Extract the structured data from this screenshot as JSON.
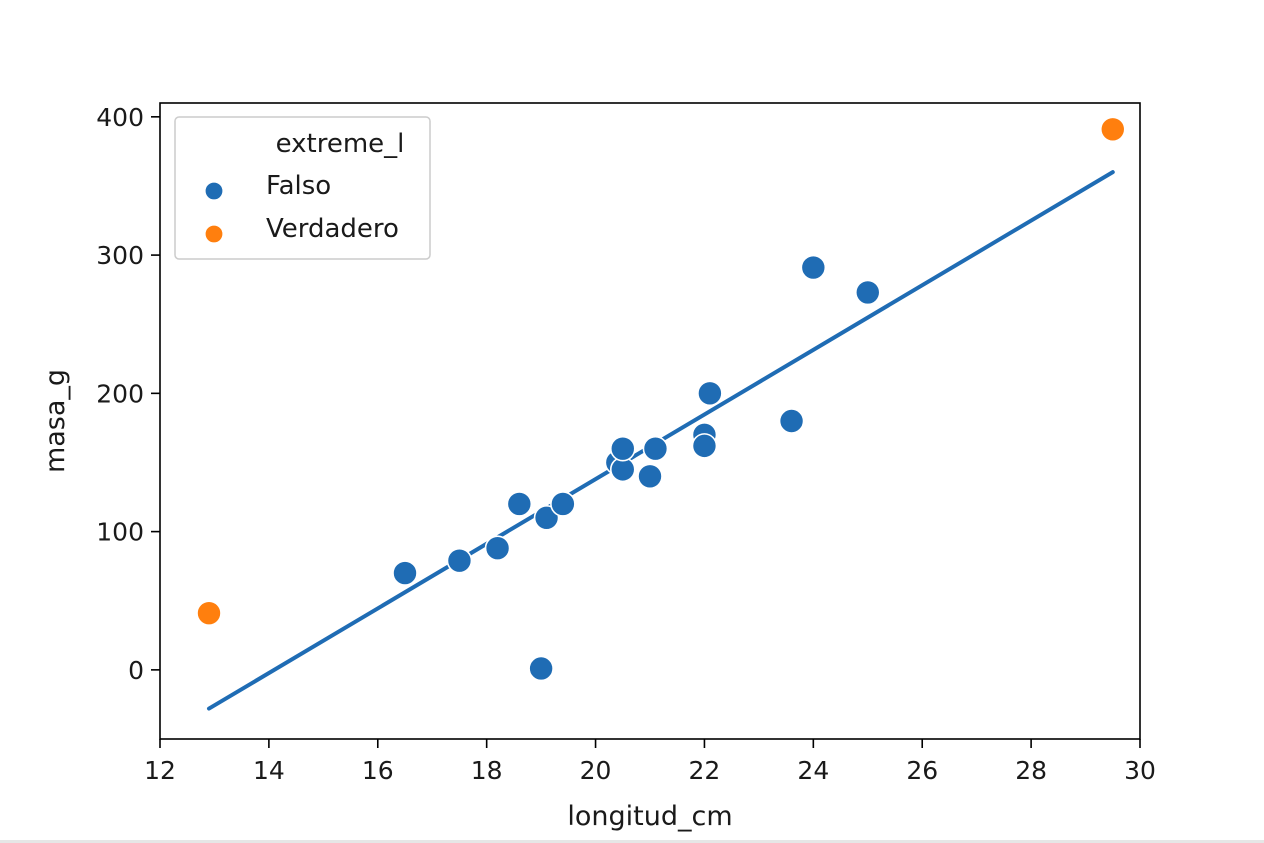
{
  "chart_data": {
    "type": "scatter",
    "title": "",
    "xlabel": "longitud_cm",
    "ylabel": "masa_g",
    "xlim": [
      12,
      30
    ],
    "ylim": [
      -50,
      410
    ],
    "xticks": [
      12,
      14,
      16,
      18,
      20,
      22,
      24,
      26,
      28,
      30
    ],
    "yticks": [
      0,
      100,
      200,
      300,
      400
    ],
    "grid": false,
    "legend": {
      "title": "extreme_l",
      "placement": "upper-left",
      "entries": [
        "Falso",
        "Verdadero"
      ]
    },
    "series": [
      {
        "name": "Falso",
        "color": "#1f6cb4",
        "points": [
          {
            "x": 16.5,
            "y": 70
          },
          {
            "x": 17.5,
            "y": 79
          },
          {
            "x": 18.2,
            "y": 88
          },
          {
            "x": 18.6,
            "y": 120
          },
          {
            "x": 19.0,
            "y": 1
          },
          {
            "x": 19.1,
            "y": 110
          },
          {
            "x": 19.4,
            "y": 120
          },
          {
            "x": 20.4,
            "y": 150
          },
          {
            "x": 20.5,
            "y": 145
          },
          {
            "x": 20.5,
            "y": 160
          },
          {
            "x": 21.0,
            "y": 140
          },
          {
            "x": 21.1,
            "y": 160
          },
          {
            "x": 22.0,
            "y": 170
          },
          {
            "x": 22.0,
            "y": 162
          },
          {
            "x": 22.1,
            "y": 200
          },
          {
            "x": 23.6,
            "y": 180
          },
          {
            "x": 24.0,
            "y": 291
          },
          {
            "x": 25.0,
            "y": 273
          }
        ]
      },
      {
        "name": "Verdadero",
        "color": "#ff7f0e",
        "points": [
          {
            "x": 12.9,
            "y": 41
          },
          {
            "x": 29.5,
            "y": 391
          }
        ]
      }
    ],
    "regression_line": {
      "color": "#1f6cb4",
      "points": [
        {
          "x": 12.9,
          "y": -28
        },
        {
          "x": 29.5,
          "y": 360
        }
      ]
    }
  }
}
